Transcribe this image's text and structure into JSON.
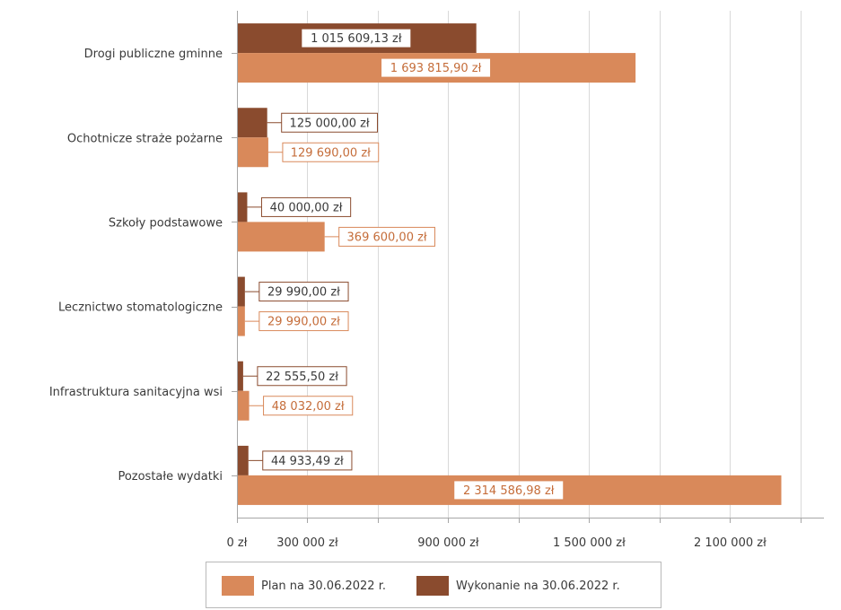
{
  "chart_data": {
    "type": "bar",
    "orientation": "horizontal",
    "categories": [
      "Drogi publiczne gminne",
      "Ochotnicze straże pożarne",
      "Szkoły podstawowe",
      "Lecznictwo stomatologiczne",
      "Infrastruktura sanitacyjna wsi",
      "Pozostałe wydatki"
    ],
    "series": [
      {
        "name": "Wykonanie na 30.06.2022 r.",
        "color": "#8a4b2e",
        "values": [
          1015609.13,
          125000.0,
          40000.0,
          29990.0,
          22555.5,
          44933.49
        ],
        "labels": [
          "1 015 609,13 zł",
          "125 000,00 zł",
          "40 000,00 zł",
          "29 990,00 zł",
          "22 555,50 zł",
          "44 933,49 zł"
        ]
      },
      {
        "name": "Plan na 30.06.2022 r.",
        "color": "#d9895a",
        "values": [
          1693815.9,
          129690.0,
          369600.0,
          29990.0,
          48032.0,
          2314586.98
        ],
        "labels": [
          "1 693 815,90 zł",
          "129 690,00 zł",
          "369 600,00 zł",
          "29 990,00 zł",
          "48 032,00 zł",
          "2 314 586,98 zł"
        ]
      }
    ],
    "x_ticks": [
      {
        "value": 0,
        "label": "0 zł"
      },
      {
        "value": 300000,
        "label": "300 000 zł"
      },
      {
        "value": 900000,
        "label": "900 000 zł"
      },
      {
        "value": 1500000,
        "label": "1 500 000 zł"
      },
      {
        "value": 2100000,
        "label": "2 100 000 zł"
      }
    ],
    "gridlines_at": [
      0,
      300000,
      600000,
      900000,
      1200000,
      1500000,
      1800000,
      2100000,
      2400000
    ],
    "xlim": [
      0,
      2500000
    ],
    "grid": true,
    "legend_position": "bottom",
    "legend": [
      "Plan na 30.06.2022 r.",
      "Wykonanie na 30.06.2022 r."
    ],
    "title": "",
    "xlabel": "",
    "ylabel": ""
  }
}
